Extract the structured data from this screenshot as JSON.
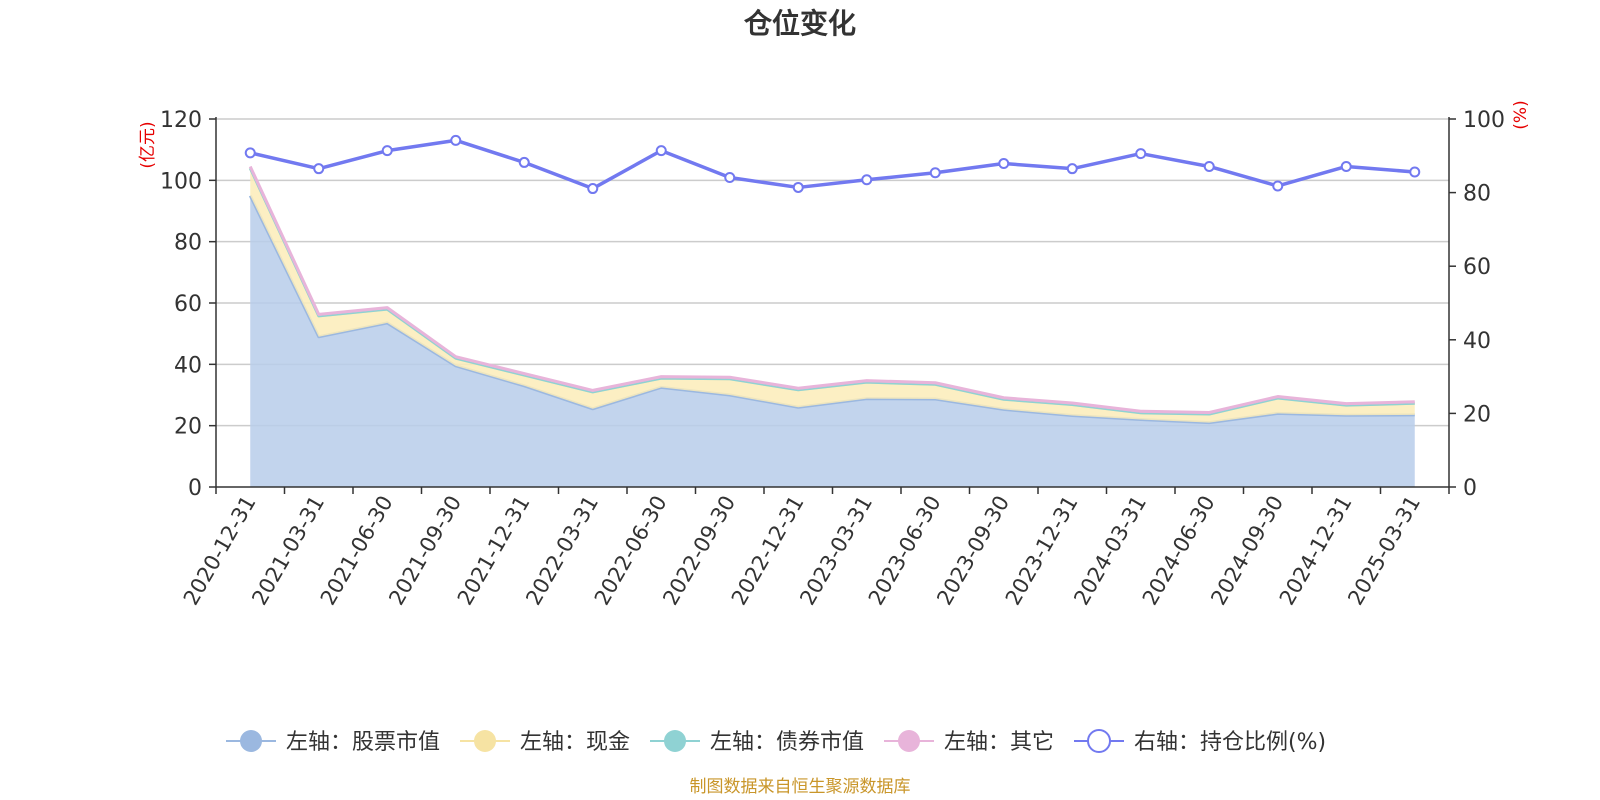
{
  "chart_data": {
    "type": "area",
    "title": "仓位变化",
    "left_axis_unit": "(亿元)",
    "right_axis_unit": "(%)",
    "categories": [
      "2020-12-31",
      "2021-03-31",
      "2021-06-30",
      "2021-09-30",
      "2021-12-31",
      "2022-03-31",
      "2022-06-30",
      "2022-09-30",
      "2022-12-31",
      "2023-03-31",
      "2023-06-30",
      "2023-09-30",
      "2023-12-31",
      "2024-03-31",
      "2024-06-30",
      "2024-09-30",
      "2024-12-31",
      "2025-03-31"
    ],
    "left_ylim": [
      0,
      120
    ],
    "left_ticks": [
      0,
      20,
      40,
      60,
      80,
      100,
      120
    ],
    "right_ylim": [
      0,
      100
    ],
    "right_ticks": [
      0,
      20,
      40,
      60,
      80,
      100
    ],
    "grid": true,
    "legend_position": "bottom",
    "series": [
      {
        "name": "左轴：股票市值",
        "axis": "left",
        "color": "#9bb8e0",
        "fill": "#b7cdea",
        "values": [
          95,
          49,
          53.5,
          39.5,
          33,
          25.5,
          32.5,
          30,
          26,
          28.8,
          28.7,
          25.3,
          23.3,
          22,
          21,
          24,
          23.4,
          23.5
        ]
      },
      {
        "name": "左轴：现金",
        "axis": "left",
        "color": "#f6e3a3",
        "fill": "#fbecb8",
        "values": [
          9,
          6.8,
          4.5,
          2.5,
          3.5,
          5.5,
          3,
          5.3,
          5.7,
          5.4,
          4.8,
          3.3,
          3.6,
          2.2,
          2.8,
          5,
          3.3,
          3.8
        ]
      },
      {
        "name": "左轴：债券市值",
        "axis": "left",
        "color": "#8fd2d3",
        "fill": "#8fd2d3",
        "values": [
          0,
          0,
          0,
          0,
          0,
          0,
          0,
          0,
          0,
          0,
          0,
          0,
          0,
          0,
          0,
          0,
          0,
          0
        ]
      },
      {
        "name": "左轴：其它",
        "axis": "left",
        "color": "#e8b4da",
        "fill": "#e8b4da",
        "values": [
          0.5,
          0.5,
          0.5,
          0.5,
          0.5,
          0.5,
          0.5,
          0.5,
          0.5,
          0.5,
          0.5,
          0.5,
          0.5,
          0.5,
          0.5,
          0.5,
          0.5,
          0.5
        ]
      },
      {
        "name": "右轴：持仓比例(%)",
        "axis": "right",
        "color": "#7279f0",
        "values": [
          90.8,
          86.5,
          91.4,
          94.2,
          88.2,
          81.1,
          91.4,
          84.1,
          81.4,
          83.5,
          85.4,
          87.9,
          86.5,
          90.6,
          87.1,
          81.8,
          87.1,
          85.6
        ]
      }
    ]
  },
  "source_note": "制图数据来自恒生聚源数据库"
}
